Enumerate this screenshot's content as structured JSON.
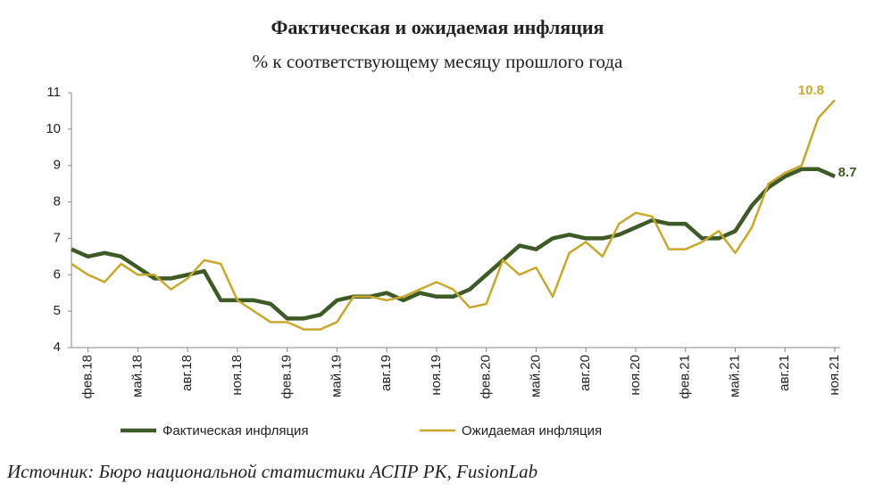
{
  "chart_data": {
    "type": "line",
    "title": "Фактическая и ожидаемая инфляция",
    "subtitle": "% к соответствующему месяцу прошлого года",
    "source": "Источник: Бюро национальной статистики АСПР РК, FusionLab",
    "categories": [
      null,
      "фев.18",
      null,
      null,
      "май.18",
      null,
      null,
      "авг.18",
      null,
      null,
      "ноя.18",
      null,
      null,
      "фев.19",
      null,
      null,
      "май.19",
      null,
      null,
      "авг.19",
      null,
      null,
      "ноя.19",
      null,
      null,
      "фев.20",
      null,
      null,
      "май.20",
      null,
      null,
      "авг.20",
      null,
      null,
      "ноя.20",
      null,
      null,
      "фев.21",
      null,
      null,
      "май.21",
      null,
      null,
      "авг.21",
      null,
      null,
      "ноя.21"
    ],
    "series": [
      {
        "name": "Фактическая инфляция",
        "color": "#3d5a27",
        "values": [
          6.7,
          6.5,
          6.6,
          6.5,
          6.2,
          5.9,
          5.9,
          6.0,
          6.1,
          5.3,
          5.3,
          5.3,
          5.2,
          4.8,
          4.8,
          4.9,
          5.3,
          5.4,
          5.4,
          5.5,
          5.3,
          5.5,
          5.4,
          5.4,
          5.6,
          6.0,
          6.4,
          6.8,
          6.7,
          7.0,
          7.1,
          7.0,
          7.0,
          7.1,
          7.3,
          7.5,
          7.4,
          7.4,
          7.0,
          7.0,
          7.2,
          7.9,
          8.4,
          8.7,
          8.9,
          8.9,
          8.7
        ]
      },
      {
        "name": "Ожидаемая инфляция",
        "color": "#c8a82c",
        "values": [
          6.3,
          6.0,
          5.8,
          6.3,
          6.0,
          6.0,
          5.6,
          5.9,
          6.4,
          6.3,
          5.3,
          5.0,
          4.7,
          4.7,
          4.5,
          4.5,
          4.7,
          5.4,
          5.4,
          5.3,
          5.4,
          5.6,
          5.8,
          5.6,
          5.1,
          5.2,
          6.4,
          6.0,
          6.2,
          5.4,
          6.6,
          6.9,
          6.5,
          7.4,
          7.7,
          7.6,
          6.7,
          6.7,
          6.9,
          7.2,
          6.6,
          7.3,
          8.5,
          8.8,
          9.0,
          10.3,
          10.8
        ]
      }
    ],
    "ylim": [
      4,
      11
    ],
    "yticks": [
      4,
      5,
      6,
      7,
      8,
      9,
      10,
      11
    ],
    "grid": false
  }
}
